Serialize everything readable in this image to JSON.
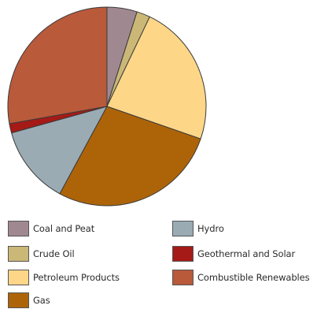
{
  "chart_data": {
    "type": "pie",
    "title": "",
    "categories": [
      "Coal and Peat",
      "Crude Oil",
      "Petroleum Products",
      "Gas",
      "Hydro",
      "Geothermal and Solar",
      "Combustible Renewables"
    ],
    "values": [
      4.9,
      2.2,
      23.2,
      27.6,
      12.8,
      1.5,
      27.8
    ],
    "colors": [
      "#a08891",
      "#cbb877",
      "#fdd687",
      "#ad6409",
      "#9aabb4",
      "#a51a16",
      "#b95a3b"
    ],
    "slice_order": [
      "Coal and Peat",
      "Crude Oil",
      "Petroleum Products",
      "Gas",
      "Hydro",
      "Geothermal and Solar",
      "Combustible Renewables"
    ],
    "start_angle": "top",
    "direction": "clockwise",
    "legend": {
      "placement": "bottom",
      "columns": 2,
      "column_1": [
        "Coal and Peat",
        "Crude Oil",
        "Petroleum Products",
        "Gas"
      ],
      "column_2": [
        "Hydro",
        "Geothermal and Solar",
        "Combustible Renewables"
      ]
    }
  },
  "legend_labels": {
    "coal": "Coal and Peat",
    "crude": "Crude Oil",
    "petroleum": "Petroleum Products",
    "gas": "Gas",
    "hydro": "Hydro",
    "geothermal": "Geothermal and Solar",
    "renewables": "Combustible Renewables"
  }
}
